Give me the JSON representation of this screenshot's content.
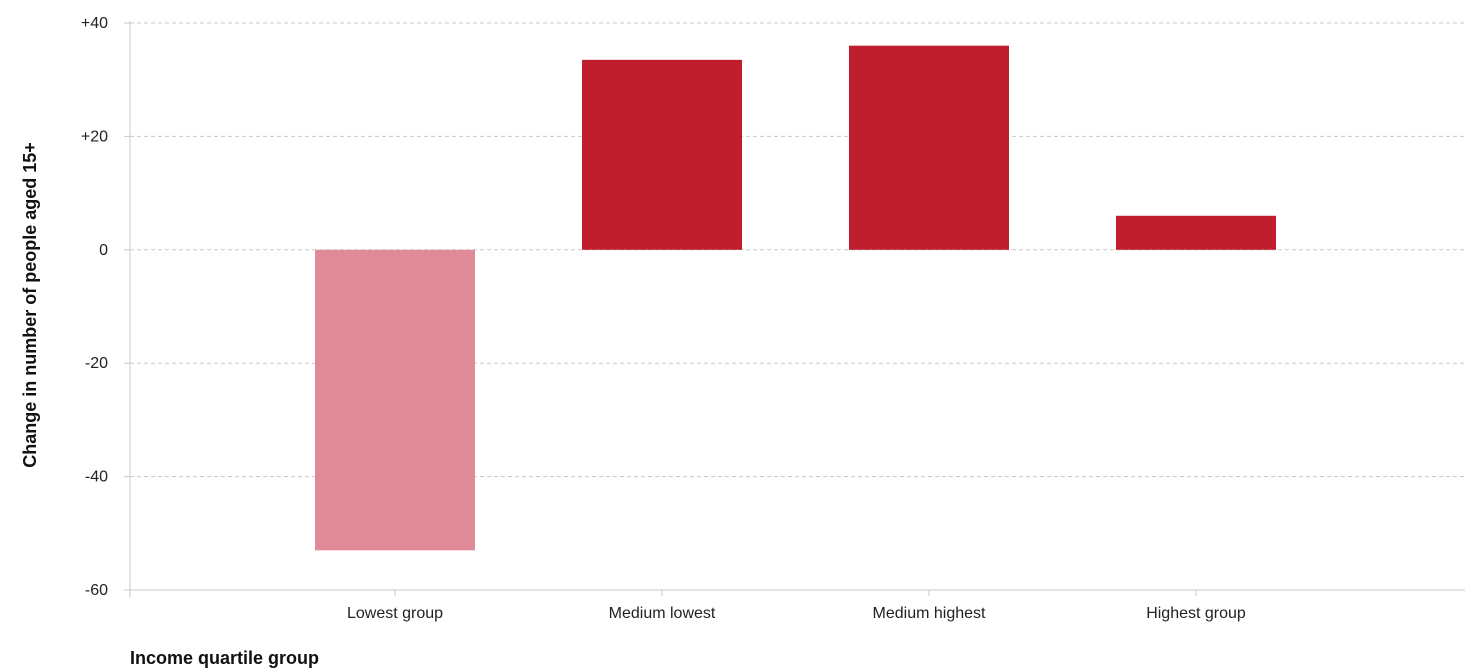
{
  "chart_data": {
    "type": "bar",
    "categories": [
      "Lowest group",
      "Medium lowest",
      "Medium highest",
      "Highest group"
    ],
    "values": [
      -53,
      33.5,
      36,
      6
    ],
    "bar_colors": [
      "#e08a97",
      "#be1e2d",
      "#be1e2d",
      "#be1e2d"
    ],
    "xlabel": "Income quartile group",
    "ylabel": "Change in number of people aged 15+",
    "ylim": [
      -60,
      40
    ],
    "y_ticks": [
      40,
      20,
      0,
      -20,
      -40,
      -60
    ],
    "y_tick_labels": [
      "+40",
      "+20",
      "0",
      "-20",
      "-40",
      "-60"
    ],
    "grid": true,
    "legend": "none"
  }
}
